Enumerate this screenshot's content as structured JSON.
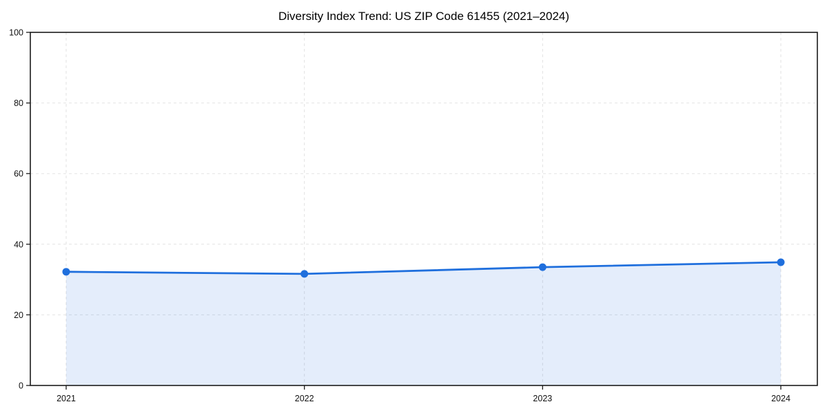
{
  "title": "Diversity Index Trend: US ZIP Code 61455 (2021–2024)",
  "chart_data": {
    "type": "area",
    "categories": [
      "2021",
      "2022",
      "2023",
      "2024"
    ],
    "series": [
      {
        "name": "Diversity Index",
        "values": [
          32.2,
          31.6,
          33.5,
          34.9
        ]
      }
    ],
    "title": "Diversity Index Trend: US ZIP Code 61455 (2021–2024)",
    "xlabel": "",
    "ylabel": "",
    "ylim": [
      0,
      100
    ],
    "yticks": [
      0,
      20,
      40,
      60,
      80,
      100
    ],
    "grid": true,
    "grid_style": "dashed",
    "legend_position": "none",
    "line_color": "#1f6fdd",
    "marker": "circle",
    "marker_color": "#1f6fdd",
    "fill_color": "#1f6fdd",
    "fill_opacity": 0.12,
    "grid_color": "#e2e2e2",
    "axis_color": "#1a1a1a",
    "background_color": "#ffffff"
  }
}
